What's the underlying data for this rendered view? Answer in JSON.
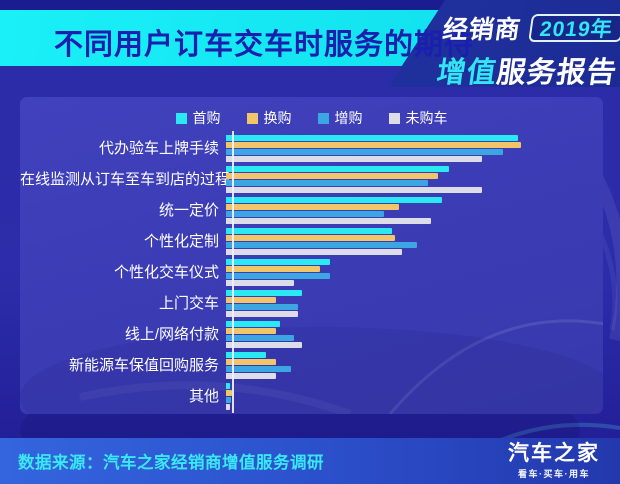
{
  "header": {
    "title": "不同用户订车交车时服务的期待",
    "badge": {
      "dealer": "经销商",
      "year": "2019年",
      "report_cyan": "增值",
      "report_white": "服务报告"
    }
  },
  "chart_data": {
    "type": "bar",
    "orientation": "horizontal",
    "title": "不同用户订车交车时服务的期待",
    "legend_position": "top",
    "axis_labels_visible": false,
    "x_range": [
      0,
      100
    ],
    "values_note": "估算值（图中无数值标注），以绘图区宽度百分比表示",
    "categories": [
      "代办验车上牌手续",
      "在线监测从订车至车到店的过程",
      "统一定价",
      "个性化定制",
      "个性化交车仪式",
      "上门交车",
      "线上/网络付款",
      "新能源车保值回购服务",
      "其他"
    ],
    "series": [
      {
        "name": "首购",
        "color": "#2be9f2",
        "values": [
          81,
          62,
          60,
          46,
          29,
          21,
          15,
          11,
          1.2
        ]
      },
      {
        "name": "换购",
        "color": "#f2c568",
        "values": [
          82,
          59,
          48,
          47,
          26,
          14,
          14,
          14,
          1.8
        ]
      },
      {
        "name": "增购",
        "color": "#3ba6e2",
        "values": [
          77,
          56,
          44,
          53,
          29,
          20,
          19,
          18,
          1.5
        ]
      },
      {
        "name": "未购车",
        "color": "#dcdde8",
        "values": [
          71,
          71,
          57,
          49,
          19,
          20,
          21,
          14,
          1.0
        ]
      }
    ]
  },
  "footer": {
    "source": "数据来源：汽车之家经销商增值服务调研",
    "logo": "汽车之家",
    "logo_tagline": "看车·买车·用车"
  },
  "colors": {
    "header_band": "#15eff7",
    "header_title": "#1a1fae",
    "badge_navy": "#1e2d9c",
    "badge_cyan_text": "#32e6f3",
    "page_background": "#2b2ba6",
    "panel_background": "#3c3db6",
    "axis_line": "#eef0fc",
    "footer_left": "#3465de",
    "footer_right": "#2338ad",
    "footer_text": "#38e9f4"
  }
}
